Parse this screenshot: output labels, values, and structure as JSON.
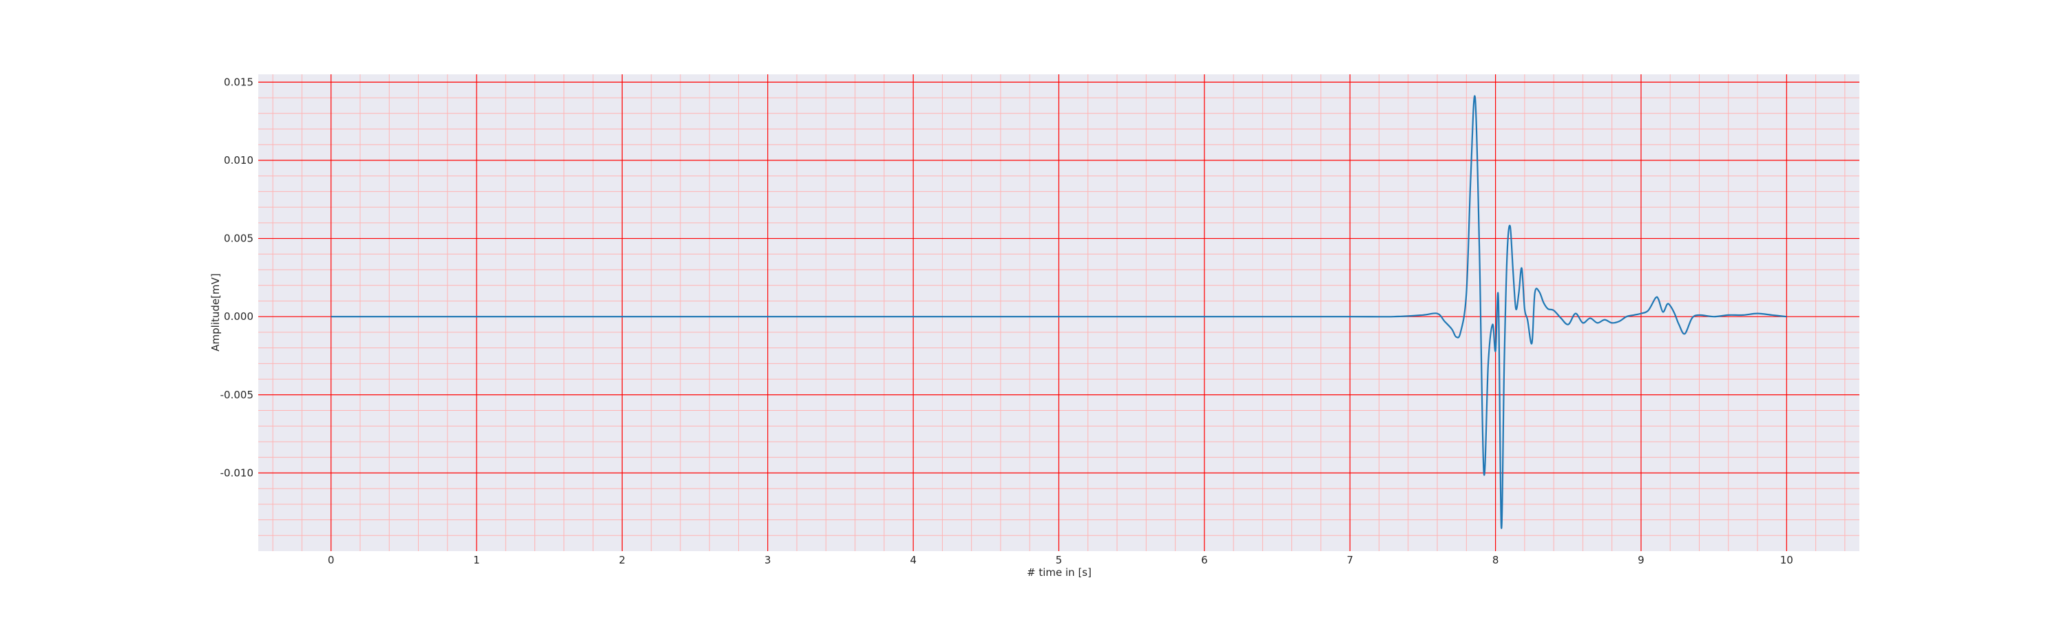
{
  "chart_data": {
    "type": "line",
    "title": "",
    "xlabel": "# time in [s]",
    "ylabel": "Amplitude[mV]",
    "xlim": [
      -0.5,
      10.5
    ],
    "ylim": [
      -0.015,
      0.0155
    ],
    "x_ticks": [
      0,
      1,
      2,
      3,
      4,
      5,
      6,
      7,
      8,
      9,
      10
    ],
    "x_tick_labels": [
      "0",
      "1",
      "2",
      "3",
      "4",
      "5",
      "6",
      "7",
      "8",
      "9",
      "10"
    ],
    "y_ticks": [
      -0.01,
      -0.005,
      0.0,
      0.005,
      0.01,
      0.015
    ],
    "y_tick_labels": [
      "-0.010",
      "-0.005",
      "0.000",
      "0.005",
      "0.010",
      "0.015"
    ],
    "grid": true,
    "minor_grid": true,
    "grid_color": "#ff0000",
    "background": "#eaeaf2",
    "series": [
      {
        "color": "#1f77b4",
        "x": [
          0.0,
          0.5,
          1.0,
          1.5,
          2.0,
          2.5,
          3.0,
          3.5,
          4.0,
          4.5,
          5.0,
          5.5,
          6.0,
          6.5,
          7.0,
          7.3,
          7.5,
          7.6,
          7.65,
          7.7,
          7.73,
          7.76,
          7.8,
          7.83,
          7.86,
          7.89,
          7.92,
          7.95,
          7.98,
          8.0,
          8.02,
          8.04,
          8.06,
          8.08,
          8.1,
          8.12,
          8.14,
          8.16,
          8.18,
          8.2,
          8.22,
          8.25,
          8.27,
          8.3,
          8.33,
          8.36,
          8.4,
          8.45,
          8.5,
          8.55,
          8.6,
          8.65,
          8.7,
          8.75,
          8.8,
          8.85,
          8.9,
          8.95,
          9.0,
          9.05,
          9.1,
          9.12,
          9.15,
          9.18,
          9.2,
          9.23,
          9.26,
          9.3,
          9.35,
          9.4,
          9.5,
          9.6,
          9.7,
          9.8,
          9.9,
          10.0
        ],
        "y": [
          0.0,
          0.0,
          0.0,
          0.0,
          0.0,
          0.0,
          0.0,
          0.0,
          0.0,
          0.0,
          0.0,
          0.0,
          0.0,
          0.0,
          0.0,
          0.0,
          0.0001,
          0.0002,
          -0.0003,
          -0.0008,
          -0.0013,
          -0.001,
          0.0015,
          0.009,
          0.014,
          0.004,
          -0.01,
          -0.003,
          -0.0005,
          -0.0022,
          0.0011,
          -0.0135,
          -0.003,
          0.004,
          0.0058,
          0.003,
          0.0005,
          0.0015,
          0.0031,
          0.0005,
          -0.0002,
          -0.0017,
          0.0015,
          0.0016,
          0.0009,
          0.0005,
          0.0004,
          -0.0001,
          -0.0005,
          0.0002,
          -0.0004,
          -0.0001,
          -0.0004,
          -0.0002,
          -0.0004,
          -0.0003,
          0.0,
          0.0001,
          0.0002,
          0.0004,
          0.0012,
          0.0011,
          0.0003,
          0.0008,
          0.0007,
          0.0002,
          -0.0005,
          -0.0011,
          -0.0001,
          0.0001,
          0.0,
          0.0001,
          0.0001,
          0.0002,
          0.0001,
          0.0
        ]
      }
    ]
  }
}
